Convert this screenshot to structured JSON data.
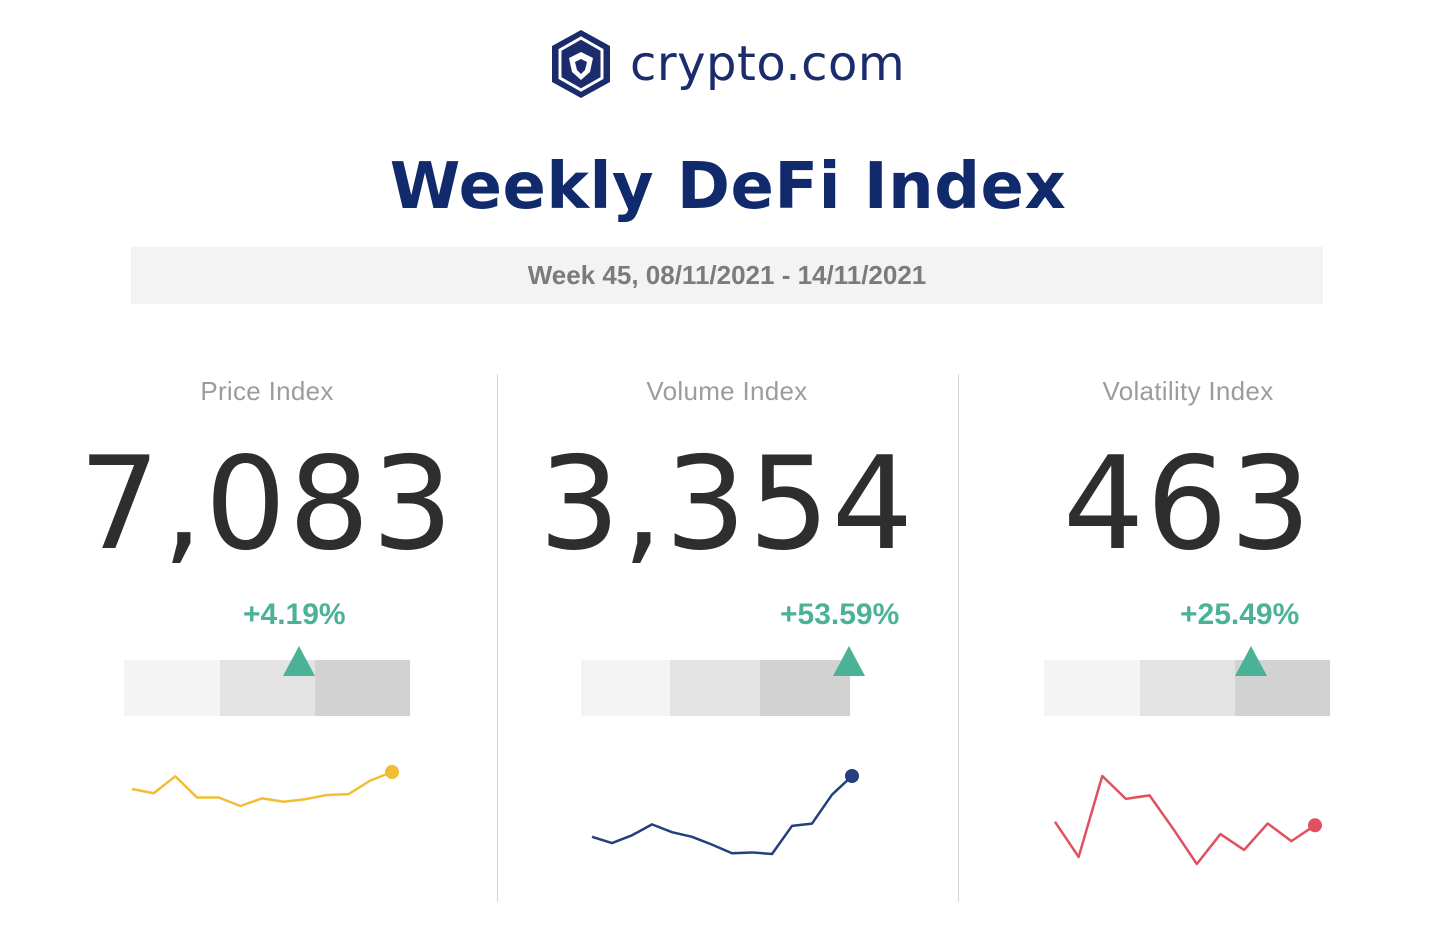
{
  "brand": {
    "name": "crypto.com",
    "logo_icon": "lion-shield-icon",
    "color": "#1b2b6b"
  },
  "title": "Weekly DeFi Index",
  "week": "Week 45, 08/11/2021 - 14/11/2021",
  "columns": [
    {
      "label": "Price Index",
      "value": "7,083",
      "change": "+4.19%",
      "gauge_level": 0.61,
      "sparkline_color": "#f2bd35",
      "sparkline": [
        3.0,
        2.5,
        4.5,
        2.0,
        2.0,
        1.0,
        1.9,
        1.5,
        1.8,
        2.3,
        2.4,
        4.0,
        5.0
      ]
    },
    {
      "label": "Volume Index",
      "value": "3,354",
      "change": "+53.59%",
      "gauge_level": 0.99,
      "sparkline_color": "#233f7c",
      "sparkline": [
        2.2,
        1.4,
        2.4,
        3.8,
        2.8,
        2.2,
        1.2,
        0.1,
        0.2,
        0.0,
        3.6,
        3.9,
        7.6,
        10.0
      ]
    },
    {
      "label": "Volatility Index",
      "value": "463",
      "change": "+25.49%",
      "gauge_level": 0.73,
      "sparkline_color": "#e05060",
      "sparkline": [
        4.8,
        0.8,
        10.0,
        7.4,
        7.8,
        4.0,
        0.0,
        3.4,
        1.6,
        4.6,
        2.6,
        4.4
      ]
    }
  ]
}
